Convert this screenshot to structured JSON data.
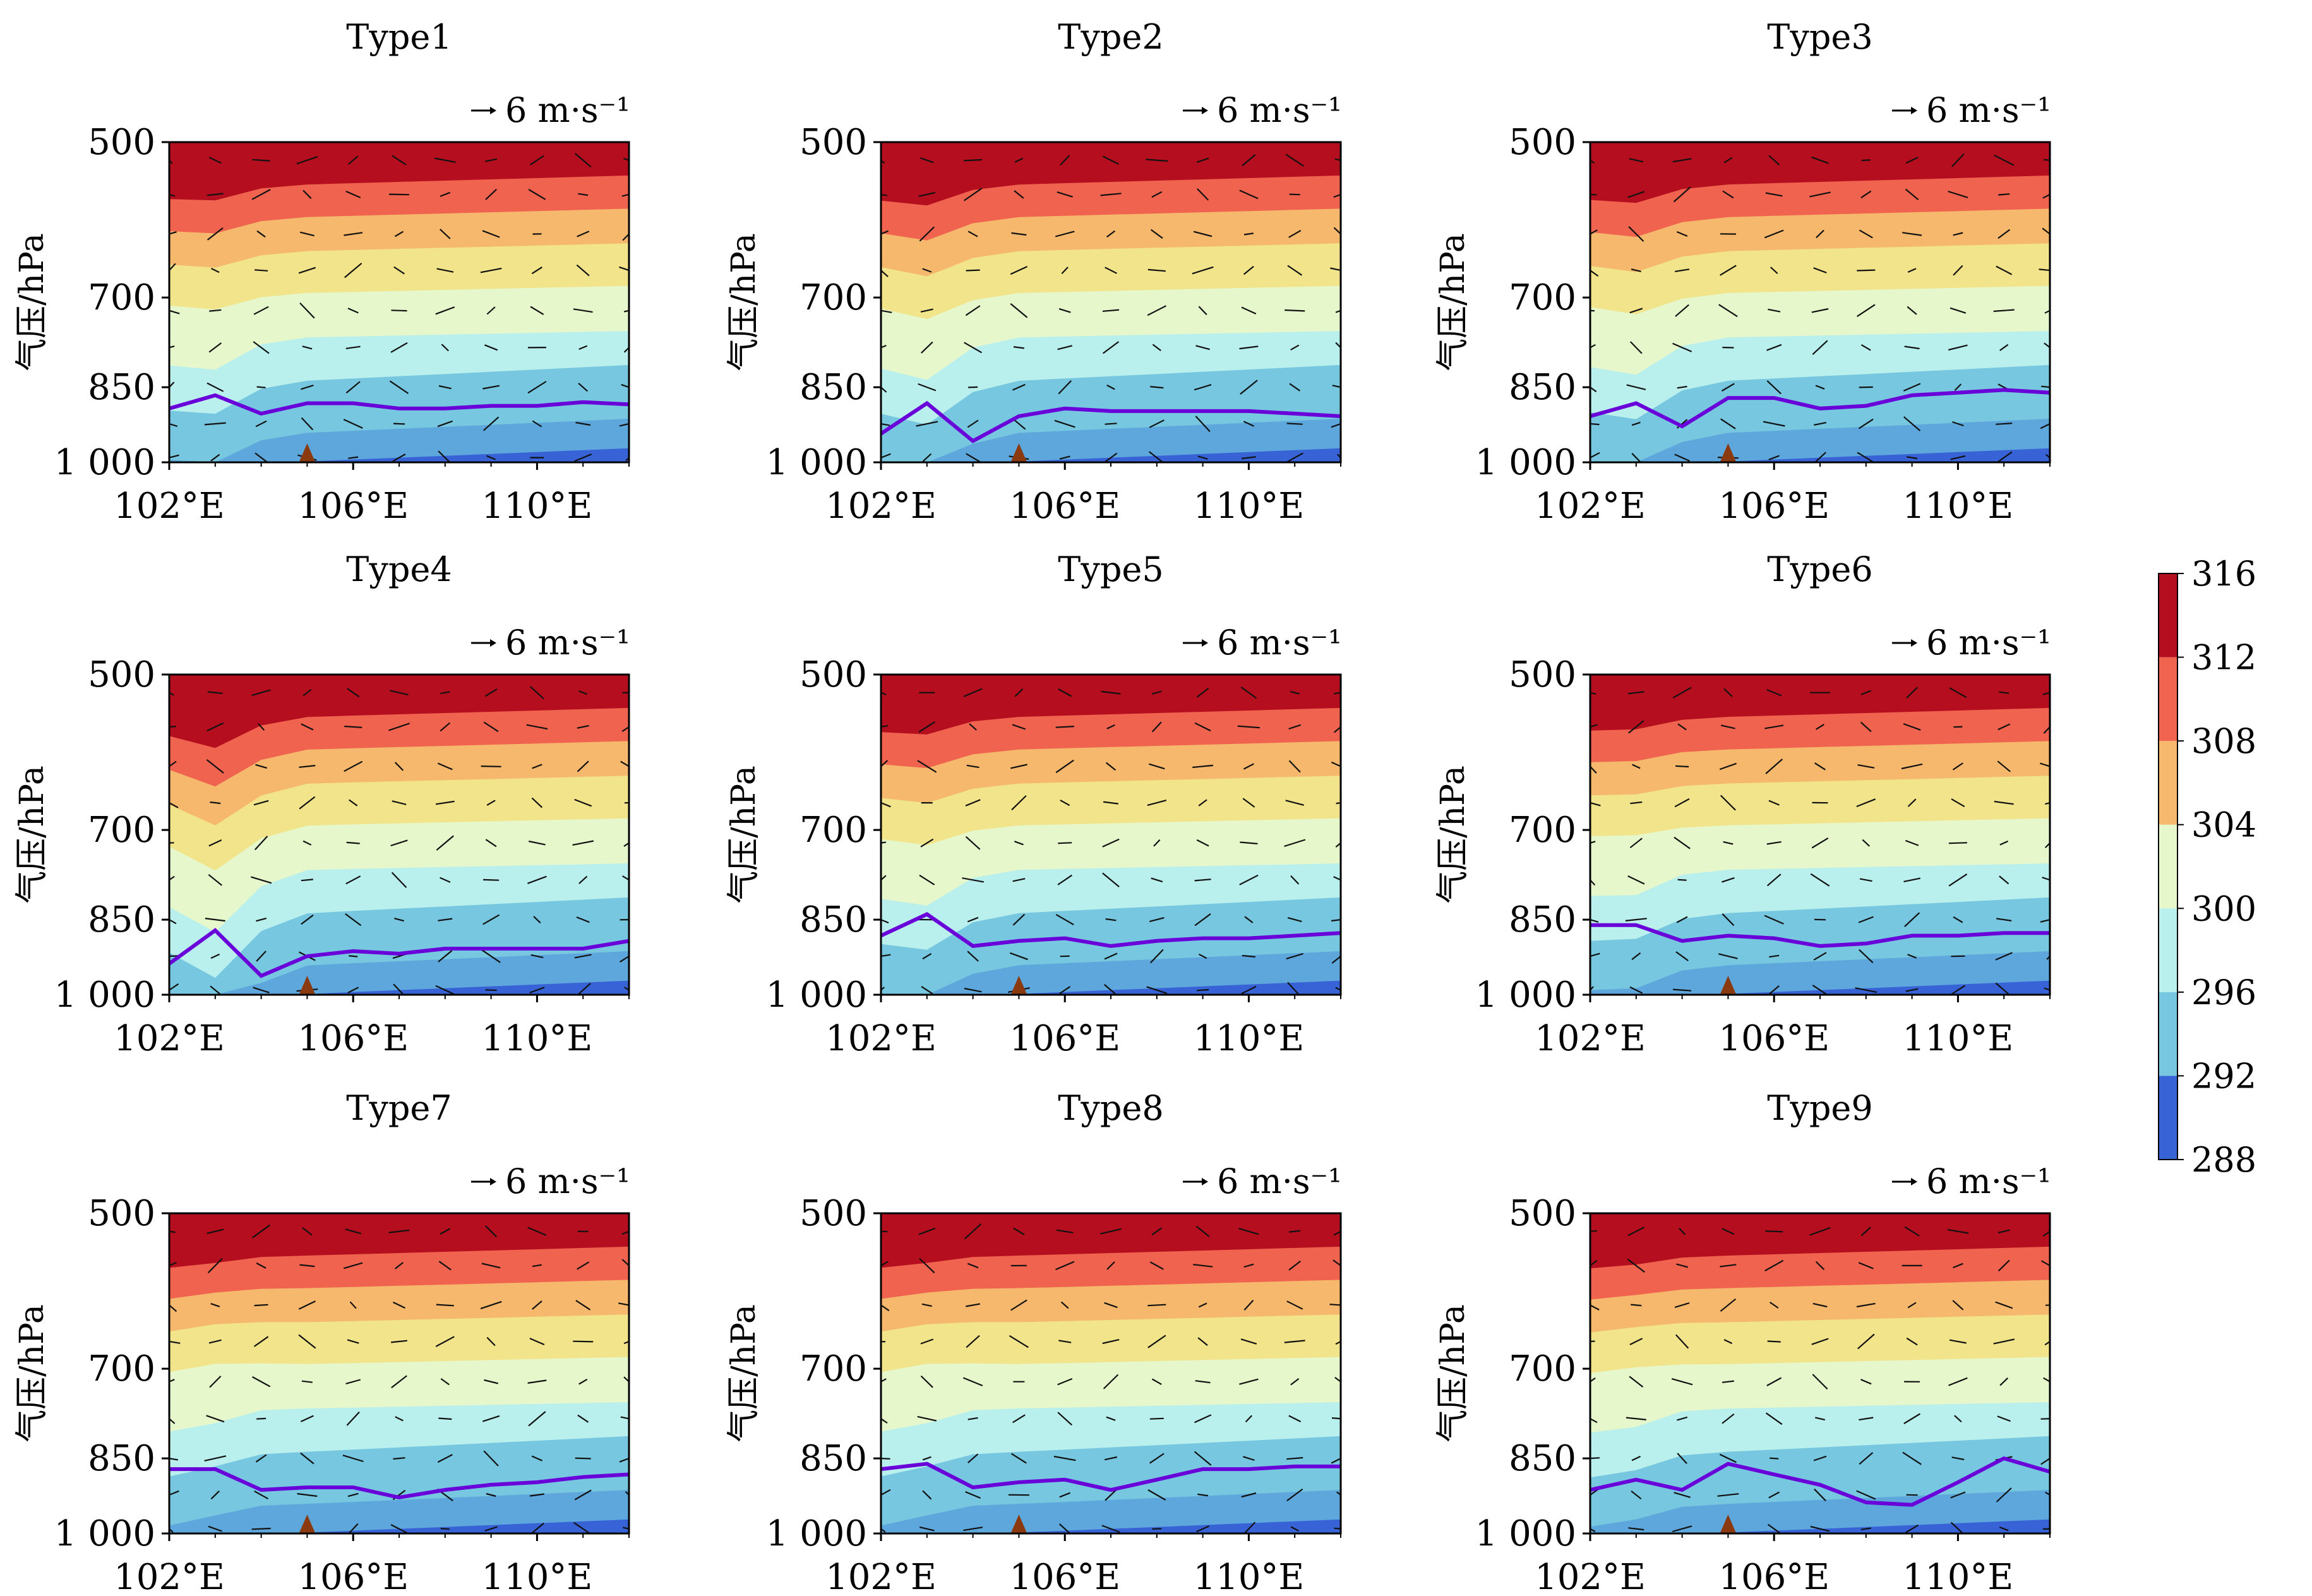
{
  "figure": {
    "colorbar": {
      "levels": [
        288,
        292,
        296,
        300,
        304,
        308,
        312,
        316
      ],
      "tick_labels": [
        "316",
        "312",
        "308",
        "304",
        "300",
        "296",
        "292",
        "288"
      ],
      "colors": [
        "#3763d6",
        "#5ea7dc",
        "#76c7df",
        "#b9efec",
        "#e6f7cc",
        "#f2e48a",
        "#f5b86c",
        "#f0634f",
        "#b50f1f"
      ]
    },
    "vector_key_label": "6 m·s⁻¹",
    "ylabel": "气压/hPa",
    "yticks": [
      "500",
      "700",
      "850",
      "1 000"
    ],
    "xticks": [
      "102°E",
      "106°E",
      "110°E"
    ],
    "line_color": "#6a00d9",
    "terrain_color": "#8b3a0f"
  },
  "chart_data": [
    {
      "type": "contour",
      "title": "Type1",
      "x": [
        102,
        103,
        104,
        105,
        106,
        107,
        108,
        109,
        110,
        111,
        112
      ],
      "purple_line_hPa": [
        890,
        865,
        900,
        880,
        880,
        890,
        890,
        885,
        885,
        878,
        882
      ],
      "warm_dip_at_103E_hPa": 740,
      "terrain_x": 105
    },
    {
      "type": "contour",
      "title": "Type2",
      "x": [
        102,
        103,
        104,
        105,
        106,
        107,
        108,
        109,
        110,
        111,
        112
      ],
      "purple_line_hPa": [
        940,
        880,
        955,
        905,
        890,
        895,
        895,
        895,
        895,
        900,
        905
      ],
      "warm_dip_at_103E_hPa": 800,
      "terrain_x": 105
    },
    {
      "type": "contour",
      "title": "Type3",
      "x": [
        102,
        103,
        104,
        105,
        106,
        107,
        108,
        109,
        110,
        111,
        112
      ],
      "purple_line_hPa": [
        905,
        880,
        925,
        870,
        870,
        890,
        885,
        865,
        860,
        855,
        860
      ],
      "warm_dip_at_103E_hPa": 770,
      "terrain_x": 105
    },
    {
      "type": "contour",
      "title": "Type4",
      "x": [
        102,
        103,
        104,
        105,
        106,
        107,
        108,
        109,
        110,
        111,
        112
      ],
      "purple_line_hPa": [
        935,
        870,
        960,
        920,
        910,
        915,
        905,
        905,
        905,
        905,
        890
      ],
      "warm_dip_at_103E_hPa": 920,
      "terrain_x": 105
    },
    {
      "type": "contour",
      "title": "Type5",
      "x": [
        102,
        103,
        104,
        105,
        106,
        107,
        108,
        109,
        110,
        111,
        112
      ],
      "purple_line_hPa": [
        880,
        840,
        900,
        890,
        885,
        900,
        890,
        885,
        885,
        880,
        875
      ],
      "warm_dip_at_103E_hPa": 760,
      "terrain_x": 105
    },
    {
      "type": "contour",
      "title": "Type6",
      "x": [
        102,
        103,
        104,
        105,
        106,
        107,
        108,
        109,
        110,
        111,
        112
      ],
      "purple_line_hPa": [
        860,
        860,
        890,
        880,
        885,
        900,
        895,
        880,
        880,
        875,
        875
      ],
      "warm_dip_at_103E_hPa": 700,
      "terrain_x": 105
    },
    {
      "type": "contour",
      "title": "Type7",
      "x": [
        102,
        103,
        104,
        105,
        106,
        107,
        108,
        109,
        110,
        111,
        112
      ],
      "purple_line_hPa": [
        870,
        870,
        910,
        905,
        905,
        925,
        910,
        900,
        895,
        885,
        880
      ],
      "warm_dip_at_103E_hPa": 640,
      "terrain_x": 105
    },
    {
      "type": "contour",
      "title": "Type8",
      "x": [
        102,
        103,
        104,
        105,
        106,
        107,
        108,
        109,
        110,
        111,
        112
      ],
      "purple_line_hPa": [
        870,
        860,
        905,
        895,
        890,
        910,
        890,
        870,
        870,
        865,
        865
      ],
      "warm_dip_at_103E_hPa": 640,
      "terrain_x": 105
    },
    {
      "type": "contour",
      "title": "Type9",
      "x": [
        102,
        103,
        104,
        105,
        106,
        107,
        108,
        109,
        110,
        111,
        112
      ],
      "purple_line_hPa": [
        910,
        890,
        910,
        860,
        880,
        900,
        935,
        940,
        895,
        850,
        875
      ],
      "warm_dip_at_103E_hPa": 660,
      "terrain_x": 105
    }
  ]
}
